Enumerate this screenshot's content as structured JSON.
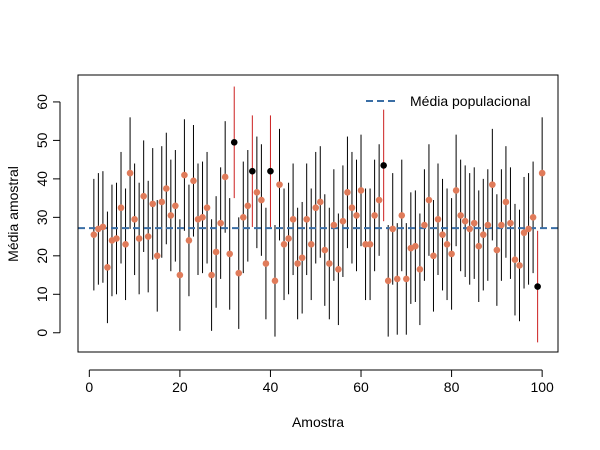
{
  "chart_data": {
    "type": "scatter",
    "title": "",
    "xlabel": "Amostra",
    "ylabel": "Média amostral",
    "xlim": [
      -2.5,
      103.5
    ],
    "ylim": [
      -5,
      67
    ],
    "xticks": [
      0,
      20,
      40,
      60,
      80,
      100
    ],
    "yticks": [
      0,
      10,
      20,
      30,
      40,
      50,
      60
    ],
    "population_mean": 27.2,
    "legend": {
      "position": "top-right",
      "entry": "Média populacional"
    },
    "colors": {
      "point_ok": "#e07b5a",
      "point_miss": "#000000",
      "ci_ok": "#000000",
      "ci_miss": "#cc1f1f",
      "mean_line": "#3a6ea5"
    },
    "half_width": 14.5,
    "x": [
      1,
      2,
      3,
      4,
      5,
      6,
      7,
      8,
      9,
      10,
      11,
      12,
      13,
      14,
      15,
      16,
      17,
      18,
      19,
      20,
      21,
      22,
      23,
      24,
      25,
      26,
      27,
      28,
      29,
      30,
      31,
      32,
      33,
      34,
      35,
      36,
      37,
      38,
      39,
      40,
      41,
      42,
      43,
      44,
      45,
      46,
      47,
      48,
      49,
      50,
      51,
      52,
      53,
      54,
      55,
      56,
      57,
      58,
      59,
      60,
      61,
      62,
      63,
      64,
      65,
      66,
      67,
      68,
      69,
      70,
      71,
      72,
      73,
      74,
      75,
      76,
      77,
      78,
      79,
      80,
      81,
      82,
      83,
      84,
      85,
      86,
      87,
      88,
      89,
      90,
      91,
      92,
      93,
      94,
      95,
      96,
      97,
      98,
      99,
      100
    ],
    "means": [
      25.5,
      27,
      27.5,
      17,
      24,
      24.5,
      32.5,
      23,
      41.5,
      29.5,
      24.5,
      35.5,
      25,
      33.5,
      20,
      34,
      37.5,
      30.5,
      33,
      15,
      41,
      24,
      39.5,
      29.5,
      30,
      32.5,
      15,
      21,
      28.5,
      40.5,
      20.5,
      49.5,
      15.5,
      30,
      33,
      42,
      36.5,
      34.5,
      18,
      42,
      13.5,
      38.5,
      23,
      24.5,
      29.5,
      18,
      19.5,
      29.5,
      23,
      32.5,
      34,
      21.5,
      18,
      28,
      16.5,
      29,
      36.5,
      32.5,
      30.5,
      37,
      23,
      23,
      30.5,
      34.5,
      43.5,
      13.5,
      27,
      14,
      30.5,
      14,
      22,
      22.5,
      16.5,
      28,
      34.5,
      20,
      29.5,
      25.5,
      23,
      20.5,
      37,
      30.5,
      29,
      27,
      28.5,
      22.5,
      25.5,
      28,
      38.5,
      21.5,
      28,
      34,
      28.5,
      19,
      17.5,
      26,
      27,
      30,
      12,
      41.5
    ]
  }
}
